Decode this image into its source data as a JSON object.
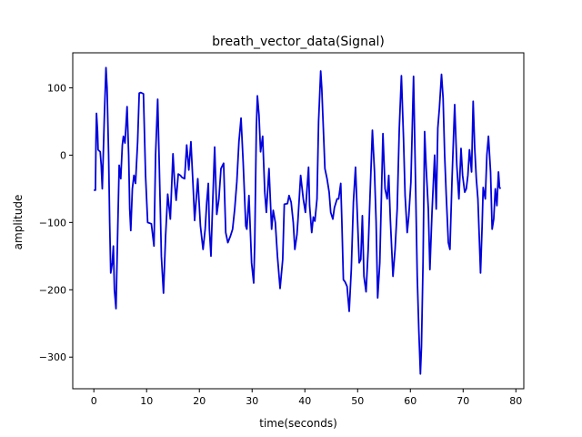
{
  "chart_data": {
    "type": "line",
    "title": "breath_vector_data(Signal)",
    "xlabel": "time(seconds)",
    "ylabel": "amplitude",
    "xlim": [
      -4,
      81.5
    ],
    "ylim": [
      -347,
      152
    ],
    "x_ticks": [
      0,
      10,
      20,
      30,
      40,
      50,
      60,
      70,
      80
    ],
    "y_ticks": [
      -300,
      -200,
      -100,
      0,
      100
    ],
    "x_tick_labels": [
      "0",
      "10",
      "20",
      "30",
      "40",
      "50",
      "60",
      "70",
      "80"
    ],
    "y_tick_labels": [
      "−300",
      "−200",
      "−100",
      "0",
      "100"
    ],
    "grid": false,
    "series": [
      {
        "color": "#0000dd",
        "points": [
          [
            0.0,
            -52
          ],
          [
            0.3,
            -52
          ],
          [
            0.4,
            20
          ],
          [
            0.5,
            62
          ],
          [
            0.7,
            35
          ],
          [
            0.8,
            8
          ],
          [
            1.2,
            5
          ],
          [
            1.4,
            -15
          ],
          [
            1.6,
            -50
          ],
          [
            2.0,
            60
          ],
          [
            2.3,
            130
          ],
          [
            2.5,
            100
          ],
          [
            2.8,
            0
          ],
          [
            3.0,
            -100
          ],
          [
            3.2,
            -175
          ],
          [
            3.5,
            -160
          ],
          [
            3.7,
            -135
          ],
          [
            3.9,
            -200
          ],
          [
            4.2,
            -228
          ],
          [
            4.5,
            -120
          ],
          [
            4.8,
            -15
          ],
          [
            5.1,
            -35
          ],
          [
            5.4,
            15
          ],
          [
            5.6,
            28
          ],
          [
            5.9,
            18
          ],
          [
            6.3,
            72
          ],
          [
            6.6,
            0
          ],
          [
            6.8,
            -80
          ],
          [
            7.0,
            -112
          ],
          [
            7.3,
            -50
          ],
          [
            7.6,
            -30
          ],
          [
            7.9,
            -42
          ],
          [
            8.3,
            20
          ],
          [
            8.6,
            92
          ],
          [
            8.9,
            93
          ],
          [
            9.4,
            91
          ],
          [
            9.8,
            -30
          ],
          [
            10.2,
            -100
          ],
          [
            10.9,
            -102
          ],
          [
            11.4,
            -135
          ],
          [
            11.7,
            0
          ],
          [
            12.1,
            83
          ],
          [
            12.6,
            -80
          ],
          [
            12.8,
            -150
          ],
          [
            13.2,
            -205
          ],
          [
            13.6,
            -120
          ],
          [
            14.0,
            -58
          ],
          [
            14.5,
            -95
          ],
          [
            15.0,
            2
          ],
          [
            15.3,
            -40
          ],
          [
            15.6,
            -67
          ],
          [
            16.0,
            -28
          ],
          [
            16.4,
            -30
          ],
          [
            16.7,
            -33
          ],
          [
            17.2,
            -35
          ],
          [
            17.6,
            15
          ],
          [
            18.0,
            -22
          ],
          [
            18.4,
            20
          ],
          [
            18.9,
            -60
          ],
          [
            19.1,
            -97
          ],
          [
            19.7,
            -35
          ],
          [
            20.2,
            -105
          ],
          [
            20.7,
            -140
          ],
          [
            21.1,
            -110
          ],
          [
            21.4,
            -70
          ],
          [
            21.7,
            -42
          ],
          [
            21.9,
            -110
          ],
          [
            22.2,
            -150
          ],
          [
            22.4,
            -100
          ],
          [
            22.9,
            12
          ],
          [
            23.3,
            -88
          ],
          [
            23.7,
            -65
          ],
          [
            24.1,
            -20
          ],
          [
            24.6,
            -12
          ],
          [
            25.0,
            -115
          ],
          [
            25.4,
            -130
          ],
          [
            25.9,
            -120
          ],
          [
            26.3,
            -110
          ],
          [
            26.7,
            -80
          ],
          [
            27.1,
            -40
          ],
          [
            27.5,
            20
          ],
          [
            27.9,
            55
          ],
          [
            28.3,
            -10
          ],
          [
            28.8,
            -105
          ],
          [
            29.0,
            -110
          ],
          [
            29.4,
            -60
          ],
          [
            29.9,
            -160
          ],
          [
            30.3,
            -190
          ],
          [
            30.5,
            -130
          ],
          [
            30.8,
            40
          ],
          [
            31.0,
            88
          ],
          [
            31.3,
            60
          ],
          [
            31.6,
            5
          ],
          [
            32.0,
            28
          ],
          [
            32.4,
            -55
          ],
          [
            32.7,
            -85
          ],
          [
            33.2,
            -20
          ],
          [
            33.7,
            -110
          ],
          [
            34.0,
            -82
          ],
          [
            34.4,
            -100
          ],
          [
            34.8,
            -150
          ],
          [
            35.3,
            -198
          ],
          [
            35.8,
            -155
          ],
          [
            36.1,
            -73
          ],
          [
            36.7,
            -72
          ],
          [
            37.0,
            -60
          ],
          [
            37.4,
            -70
          ],
          [
            37.8,
            -100
          ],
          [
            38.1,
            -140
          ],
          [
            38.5,
            -118
          ],
          [
            38.7,
            -95
          ],
          [
            39.2,
            -30
          ],
          [
            39.7,
            -65
          ],
          [
            40.1,
            -85
          ],
          [
            40.7,
            -18
          ],
          [
            40.9,
            -75
          ],
          [
            41.3,
            -115
          ],
          [
            41.6,
            -92
          ],
          [
            41.9,
            -98
          ],
          [
            42.3,
            -65
          ],
          [
            42.6,
            50
          ],
          [
            43.0,
            125
          ],
          [
            43.2,
            100
          ],
          [
            43.5,
            40
          ],
          [
            43.8,
            -20
          ],
          [
            44.2,
            -35
          ],
          [
            44.6,
            -55
          ],
          [
            44.9,
            -85
          ],
          [
            45.3,
            -95
          ],
          [
            45.6,
            -78
          ],
          [
            46.1,
            -65
          ],
          [
            46.4,
            -65
          ],
          [
            46.8,
            -42
          ],
          [
            47.0,
            -95
          ],
          [
            47.3,
            -185
          ],
          [
            47.6,
            -188
          ],
          [
            48.0,
            -195
          ],
          [
            48.4,
            -232
          ],
          [
            48.8,
            -170
          ],
          [
            49.2,
            -70
          ],
          [
            49.6,
            -18
          ],
          [
            49.9,
            -80
          ],
          [
            50.3,
            -160
          ],
          [
            50.6,
            -155
          ],
          [
            50.9,
            -90
          ],
          [
            51.2,
            -180
          ],
          [
            51.6,
            -203
          ],
          [
            52.0,
            -140
          ],
          [
            52.4,
            -50
          ],
          [
            52.8,
            37
          ],
          [
            53.2,
            -25
          ],
          [
            53.5,
            -98
          ],
          [
            53.8,
            -212
          ],
          [
            54.2,
            -160
          ],
          [
            54.8,
            32
          ],
          [
            55.2,
            -50
          ],
          [
            55.6,
            -65
          ],
          [
            55.9,
            -30
          ],
          [
            56.2,
            -95
          ],
          [
            56.7,
            -180
          ],
          [
            57.1,
            -140
          ],
          [
            57.5,
            -80
          ],
          [
            57.9,
            40
          ],
          [
            58.3,
            118
          ],
          [
            58.7,
            25
          ],
          [
            59.0,
            -60
          ],
          [
            59.4,
            -115
          ],
          [
            59.7,
            -90
          ],
          [
            60.1,
            -40
          ],
          [
            60.6,
            117
          ],
          [
            61.0,
            -50
          ],
          [
            61.3,
            -180
          ],
          [
            61.6,
            -260
          ],
          [
            61.9,
            -325
          ],
          [
            62.1,
            -285
          ],
          [
            62.4,
            -160
          ],
          [
            62.7,
            35
          ],
          [
            63.0,
            -20
          ],
          [
            63.4,
            -80
          ],
          [
            63.7,
            -170
          ],
          [
            64.1,
            -85
          ],
          [
            64.6,
            0
          ],
          [
            64.9,
            -80
          ],
          [
            65.2,
            40
          ],
          [
            65.5,
            70
          ],
          [
            65.9,
            120
          ],
          [
            66.2,
            85
          ],
          [
            66.5,
            0
          ],
          [
            66.8,
            -60
          ],
          [
            67.2,
            -130
          ],
          [
            67.5,
            -140
          ],
          [
            67.9,
            -35
          ],
          [
            68.4,
            75
          ],
          [
            68.8,
            -15
          ],
          [
            69.2,
            -65
          ],
          [
            69.6,
            10
          ],
          [
            69.9,
            -30
          ],
          [
            70.3,
            -55
          ],
          [
            70.6,
            -50
          ],
          [
            70.9,
            -30
          ],
          [
            71.2,
            8
          ],
          [
            71.6,
            -25
          ],
          [
            71.9,
            80
          ],
          [
            72.2,
            10
          ],
          [
            72.5,
            -35
          ],
          [
            72.8,
            -65
          ],
          [
            73.3,
            -175
          ],
          [
            73.6,
            -105
          ],
          [
            73.8,
            -48
          ],
          [
            74.2,
            -65
          ],
          [
            74.5,
            0
          ],
          [
            74.8,
            28
          ],
          [
            75.2,
            -25
          ],
          [
            75.5,
            -110
          ],
          [
            75.8,
            -95
          ],
          [
            76.1,
            -50
          ],
          [
            76.4,
            -75
          ],
          [
            76.7,
            -25
          ],
          [
            76.9,
            -48
          ],
          [
            77.1,
            -50
          ]
        ]
      }
    ]
  }
}
